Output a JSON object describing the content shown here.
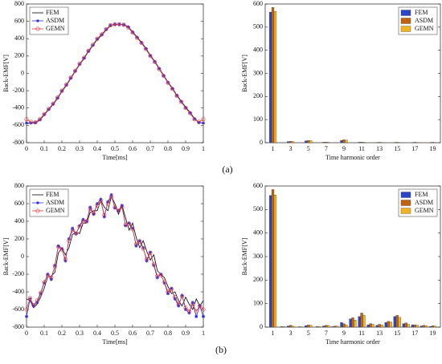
{
  "panel_labels": [
    "(a)",
    "(b)"
  ],
  "chart_data": [
    {
      "type": "line",
      "xlabel": "Time[ms]",
      "ylabel": "Back-EMF[V]",
      "legend": "upper left",
      "grid": false,
      "xlim": [
        0,
        1
      ],
      "xticks": [
        0,
        0.1,
        0.2,
        0.3,
        0.4,
        0.5,
        0.6,
        0.7,
        0.8,
        0.9,
        1
      ],
      "ylim": [
        -800,
        800
      ],
      "yticks": [
        -800,
        -600,
        -400,
        -200,
        0,
        200,
        400,
        600,
        800
      ],
      "x": [
        0,
        0.025,
        0.05,
        0.075,
        0.1,
        0.125,
        0.15,
        0.175,
        0.2,
        0.225,
        0.25,
        0.275,
        0.3,
        0.325,
        0.35,
        0.375,
        0.4,
        0.425,
        0.45,
        0.475,
        0.5,
        0.525,
        0.55,
        0.575,
        0.6,
        0.625,
        0.65,
        0.675,
        0.7,
        0.725,
        0.75,
        0.775,
        0.8,
        0.825,
        0.85,
        0.875,
        0.9,
        0.925,
        0.95,
        0.975,
        1
      ],
      "series": [
        {
          "name": "FEM",
          "color": "#000000",
          "marker": "none",
          "values": [
            -575,
            -575,
            -570,
            -540,
            -480,
            -420,
            -360,
            -290,
            -210,
            -140,
            -60,
            20,
            100,
            170,
            250,
            320,
            390,
            440,
            500,
            550,
            565,
            565,
            562,
            540,
            480,
            420,
            360,
            290,
            210,
            140,
            60,
            -20,
            -100,
            -170,
            -250,
            -320,
            -390,
            -450,
            -520,
            -565,
            -575
          ]
        },
        {
          "name": "ASDM",
          "color": "#2a2ae0",
          "marker": "star",
          "values": [
            -572,
            -572,
            -568,
            -535,
            -475,
            -415,
            -355,
            -285,
            -205,
            -135,
            -55,
            25,
            105,
            175,
            255,
            325,
            395,
            445,
            505,
            552,
            565,
            565,
            560,
            535,
            475,
            415,
            355,
            285,
            205,
            135,
            55,
            -25,
            -105,
            -175,
            -255,
            -325,
            -395,
            -455,
            -525,
            -568,
            -572
          ]
        },
        {
          "name": "GEMN",
          "color": "#e03a3a",
          "marker": "circle",
          "values": [
            -530,
            -560,
            -565,
            -530,
            -470,
            -410,
            -350,
            -280,
            -200,
            -130,
            -50,
            30,
            110,
            180,
            260,
            330,
            400,
            450,
            510,
            555,
            566,
            566,
            560,
            530,
            470,
            410,
            350,
            280,
            200,
            130,
            50,
            -30,
            -110,
            -180,
            -260,
            -330,
            -400,
            -460,
            -530,
            -560,
            -530
          ]
        }
      ]
    },
    {
      "type": "bar",
      "xlabel": "Time harmonic order",
      "ylabel": "Back-EMF[V]",
      "legend": "upper right",
      "ylim": [
        0,
        600
      ],
      "yticks": [
        0,
        100,
        200,
        300,
        400,
        500,
        600
      ],
      "categories": [
        "1",
        null,
        "3",
        null,
        "5",
        null,
        "7",
        null,
        "9",
        null,
        "11",
        null,
        "13",
        null,
        "15",
        null,
        "17",
        null,
        "19"
      ],
      "series": [
        {
          "name": "FEM",
          "color": "#2b45c8",
          "values": [
            565,
            0,
            5,
            0,
            8,
            0,
            2,
            0,
            10,
            0,
            2,
            0,
            1,
            0,
            1,
            0,
            1,
            0,
            1
          ]
        },
        {
          "name": "ASDM",
          "color": "#c2620e",
          "values": [
            585,
            0,
            6,
            0,
            10,
            0,
            3,
            0,
            13,
            0,
            3,
            0,
            2,
            0,
            2,
            0,
            2,
            0,
            2
          ]
        },
        {
          "name": "GEMN",
          "color": "#f0b420",
          "values": [
            568,
            0,
            5,
            0,
            9,
            0,
            2,
            0,
            11,
            0,
            2,
            0,
            1,
            0,
            1,
            0,
            1,
            0,
            1
          ]
        }
      ]
    },
    {
      "type": "line",
      "xlabel": "Time[ms]",
      "ylabel": "Back-EMF[V]",
      "legend": "upper left",
      "grid": false,
      "xlim": [
        0,
        1
      ],
      "xticks": [
        0,
        0.1,
        0.2,
        0.3,
        0.4,
        0.5,
        0.6,
        0.7,
        0.8,
        0.9,
        1
      ],
      "ylim": [
        -800,
        800
      ],
      "yticks": [
        -800,
        -600,
        -400,
        -200,
        0,
        200,
        400,
        600,
        800
      ],
      "x": [
        0,
        0.02,
        0.04,
        0.06,
        0.08,
        0.1,
        0.12,
        0.14,
        0.16,
        0.18,
        0.2,
        0.22,
        0.24,
        0.26,
        0.28,
        0.3,
        0.32,
        0.34,
        0.36,
        0.38,
        0.4,
        0.42,
        0.44,
        0.46,
        0.48,
        0.5,
        0.52,
        0.54,
        0.56,
        0.58,
        0.6,
        0.62,
        0.64,
        0.66,
        0.68,
        0.7,
        0.72,
        0.74,
        0.76,
        0.78,
        0.8,
        0.82,
        0.84,
        0.86,
        0.88,
        0.9,
        0.92,
        0.94,
        0.96,
        0.98,
        1
      ],
      "series": [
        {
          "name": "FEM",
          "color": "#000000",
          "marker": "none",
          "values": [
            -480,
            -500,
            -580,
            -540,
            -460,
            -360,
            -230,
            -220,
            -180,
            40,
            100,
            20,
            100,
            250,
            280,
            260,
            380,
            380,
            500,
            520,
            520,
            640,
            560,
            520,
            680,
            600,
            480,
            580,
            440,
            300,
            380,
            220,
            100,
            180,
            60,
            -40,
            20,
            -160,
            -200,
            -240,
            -340,
            -420,
            -400,
            -500,
            -560,
            -460,
            -540,
            -600,
            -480,
            -560,
            -500
          ]
        },
        {
          "name": "ASDM",
          "color": "#2a2ae0",
          "marker": "star",
          "values": [
            -680,
            -480,
            -560,
            -520,
            -420,
            -300,
            -200,
            -260,
            -100,
            120,
            90,
            -50,
            200,
            320,
            260,
            350,
            420,
            400,
            560,
            480,
            600,
            650,
            450,
            620,
            700,
            550,
            520,
            580,
            350,
            380,
            320,
            120,
            180,
            100,
            -50,
            50,
            -100,
            -240,
            -200,
            -300,
            -420,
            -360,
            -480,
            -560,
            -440,
            -600,
            -640,
            -520,
            -680,
            -560,
            -680
          ]
        },
        {
          "name": "GEMN",
          "color": "#e03a3a",
          "marker": "circle",
          "values": [
            -600,
            -470,
            -550,
            -500,
            -410,
            -290,
            -210,
            -240,
            -110,
            110,
            80,
            -30,
            180,
            300,
            260,
            340,
            400,
            400,
            540,
            490,
            580,
            630,
            470,
            600,
            680,
            560,
            520,
            560,
            360,
            370,
            310,
            140,
            170,
            90,
            -30,
            40,
            -90,
            -220,
            -210,
            -290,
            -400,
            -370,
            -460,
            -540,
            -450,
            -580,
            -620,
            -540,
            -620,
            -560,
            -600
          ]
        }
      ]
    },
    {
      "type": "bar",
      "xlabel": "Time harmonic order",
      "ylabel": "Back-EMF[V]",
      "legend": "upper right",
      "ylim": [
        0,
        600
      ],
      "yticks": [
        0,
        100,
        200,
        300,
        400,
        500,
        600
      ],
      "categories": [
        "1",
        null,
        "3",
        null,
        "5",
        null,
        "7",
        null,
        "9",
        null,
        "11",
        null,
        "13",
        null,
        "15",
        null,
        "17",
        null,
        "19"
      ],
      "series": [
        {
          "name": "FEM",
          "color": "#2b45c8",
          "values": [
            560,
            0,
            5,
            0,
            6,
            0,
            5,
            2,
            20,
            35,
            45,
            10,
            8,
            20,
            45,
            15,
            10,
            5,
            3
          ]
        },
        {
          "name": "ASDM",
          "color": "#c2620e",
          "values": [
            585,
            3,
            8,
            2,
            9,
            3,
            8,
            5,
            15,
            40,
            60,
            15,
            12,
            25,
            50,
            18,
            10,
            8,
            6
          ]
        },
        {
          "name": "GEMN",
          "color": "#f0b420",
          "values": [
            562,
            2,
            4,
            1,
            8,
            2,
            7,
            4,
            10,
            30,
            50,
            12,
            10,
            22,
            42,
            12,
            8,
            6,
            4
          ]
        }
      ]
    }
  ]
}
